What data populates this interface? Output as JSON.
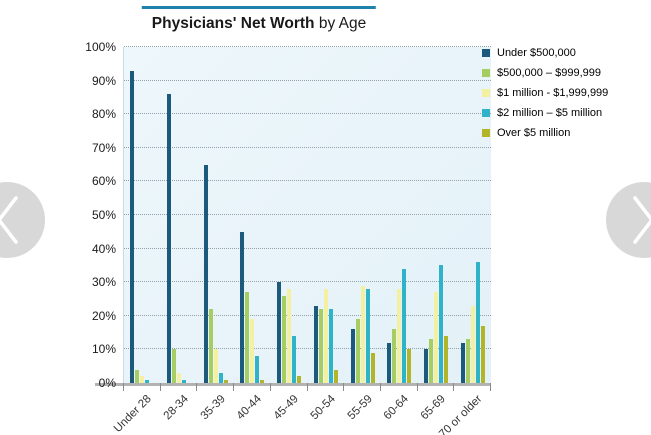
{
  "page": {
    "title_bold": "Physicians' Net Worth",
    "title_rest": " by Age",
    "title_rule_color": "#1f82ab"
  },
  "carousel": {
    "left_arrow": "previous",
    "right_arrow": "next"
  },
  "chart_data": {
    "type": "bar",
    "title": "Physicians' Net Worth by Age",
    "xlabel": "",
    "ylabel": "",
    "ylim": [
      0,
      100
    ],
    "ytick_step": 10,
    "yticks": [
      "0%",
      "10%",
      "20%",
      "30%",
      "40%",
      "50%",
      "60%",
      "70%",
      "80%",
      "90%",
      "100%"
    ],
    "grid": "horizontal-dotted",
    "legend_position": "right",
    "categories": [
      "Under 28",
      "28-34",
      "35-39",
      "40-44",
      "45-49",
      "50-54",
      "55-59",
      "60-64",
      "65-69",
      "70 or older"
    ],
    "series": [
      {
        "name": "Under $500,000",
        "color": "#1c5a7d",
        "values": [
          93,
          86,
          65,
          45,
          30,
          23,
          16,
          12,
          10,
          12
        ]
      },
      {
        "name": "$500,000 –  $999,999",
        "color": "#a5cd62",
        "values": [
          4,
          10,
          22,
          27,
          26,
          22,
          19,
          16,
          13,
          13
        ]
      },
      {
        "name": "$1 million - $1,999,999",
        "color": "#f3f1a0",
        "values": [
          2,
          3,
          10,
          19,
          28,
          28,
          29,
          28,
          27,
          23
        ]
      },
      {
        "name": "$2 million –  $5 million",
        "color": "#2fb3c9",
        "values": [
          1,
          1,
          3,
          8,
          14,
          22,
          28,
          34,
          35,
          36
        ]
      },
      {
        "name": "Over $5 million",
        "color": "#b2b42a",
        "values": [
          0,
          0,
          1,
          1,
          2,
          4,
          9,
          10,
          14,
          17
        ]
      }
    ]
  }
}
